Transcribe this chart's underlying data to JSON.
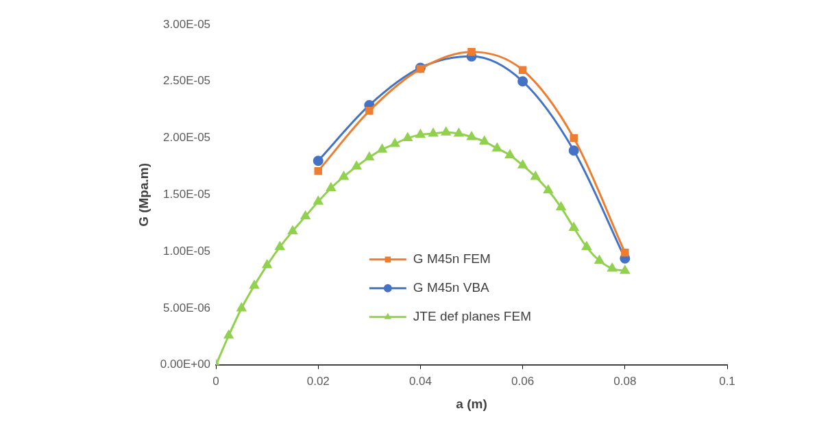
{
  "chart_data": {
    "type": "line",
    "xlabel": "a (m)",
    "ylabel": "G (Mpa.m)",
    "legend": "left",
    "grid": false,
    "xlim": [
      0,
      0.1
    ],
    "xticks": [
      0,
      0.02,
      0.04,
      0.06,
      0.08,
      0.1
    ],
    "ylim": [
      0,
      3e-05
    ],
    "yticks": [
      {
        "value": 0,
        "label": "0.00E+00"
      },
      {
        "value": 5e-06,
        "label": "5.00E-06"
      },
      {
        "value": 1e-05,
        "label": "1.00E-05"
      },
      {
        "value": 1.5e-05,
        "label": "1.50E-05"
      },
      {
        "value": 2e-05,
        "label": "2.00E-05"
      },
      {
        "value": 2.5e-05,
        "label": "2.50E-05"
      },
      {
        "value": 3e-05,
        "label": "3.00E-05"
      }
    ],
    "series": [
      {
        "name": "G M45n FEM",
        "color": "#ed7d31",
        "marker": "square",
        "x": [
          0.02,
          0.03,
          0.04,
          0.05,
          0.06,
          0.07,
          0.08
        ],
        "values": [
          1.71e-05,
          2.24e-05,
          2.61e-05,
          2.76e-05,
          2.6e-05,
          2e-05,
          9.9e-06
        ]
      },
      {
        "name": "G M45n VBA",
        "color": "#4472c4",
        "marker": "circle",
        "x": [
          0.02,
          0.03,
          0.04,
          0.05,
          0.06,
          0.07,
          0.08
        ],
        "values": [
          1.8e-05,
          2.29e-05,
          2.62e-05,
          2.72e-05,
          2.5e-05,
          1.89e-05,
          9.4e-06
        ]
      },
      {
        "name": "JTE def planes FEM",
        "color": "#92d050",
        "marker": "triangle",
        "x": [
          0,
          0.0025,
          0.005,
          0.0075,
          0.01,
          0.0125,
          0.015,
          0.0175,
          0.02,
          0.0225,
          0.025,
          0.0275,
          0.03,
          0.0325,
          0.035,
          0.0375,
          0.04,
          0.0425,
          0.045,
          0.0475,
          0.05,
          0.0525,
          0.055,
          0.0575,
          0.06,
          0.0625,
          0.065,
          0.0675,
          0.07,
          0.0725,
          0.075,
          0.0775,
          0.08
        ],
        "values": [
          0,
          2.6e-06,
          5e-06,
          7e-06,
          8.8e-06,
          1.04e-05,
          1.18e-05,
          1.31e-05,
          1.44e-05,
          1.56e-05,
          1.66e-05,
          1.75e-05,
          1.83e-05,
          1.9e-05,
          1.95e-05,
          2e-05,
          2.03e-05,
          2.04e-05,
          2.05e-05,
          2.04e-05,
          2.01e-05,
          1.97e-05,
          1.91e-05,
          1.85e-05,
          1.76e-05,
          1.66e-05,
          1.54e-05,
          1.39e-05,
          1.21e-05,
          1.04e-05,
          9.2e-06,
          8.5e-06,
          8.3e-06
        ]
      }
    ]
  }
}
